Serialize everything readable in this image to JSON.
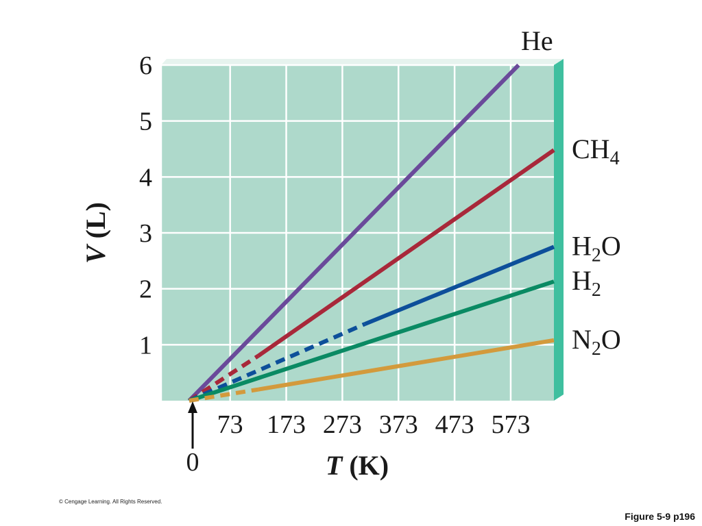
{
  "chart_data": {
    "type": "line",
    "xlabel_var": "T",
    "xlabel_unit": " (K)",
    "ylabel_var": "V",
    "ylabel_unit": " (L)",
    "x_tick_labels": [
      "73",
      "173",
      "273",
      "373",
      "473",
      "573"
    ],
    "x_tick_values": [
      73,
      173,
      273,
      373,
      473,
      573
    ],
    "x_zero_label": "0",
    "y_tick_labels": [
      "1",
      "2",
      "3",
      "4",
      "5",
      "6"
    ],
    "y_tick_values": [
      1,
      2,
      3,
      4,
      5,
      6
    ],
    "xlim": [
      -50,
      650
    ],
    "ylim": [
      0,
      6
    ],
    "grid": true,
    "series": [
      {
        "name": "He",
        "label_main": "He",
        "label_sub": "",
        "label_tail": "",
        "color": "#6a4a9a",
        "extrapolated": {
          "x": [
            0,
            0
          ],
          "y": [
            0,
            0
          ]
        },
        "measured": {
          "x": [
            0,
            587
          ],
          "y": [
            0,
            6.0
          ]
        }
      },
      {
        "name": "CH4",
        "label_main": "CH",
        "label_sub": "4",
        "label_tail": "",
        "color": "#a8283a",
        "extrapolated": {
          "x": [
            0,
            123
          ],
          "y": [
            0,
            0.8
          ]
        },
        "measured": {
          "x": [
            123,
            650
          ],
          "y": [
            0.8,
            4.48
          ]
        }
      },
      {
        "name": "H2O",
        "label_main": "H",
        "label_sub": "2",
        "label_tail": "O",
        "color": "#0d4f9a",
        "extrapolated": {
          "x": [
            0,
            313
          ],
          "y": [
            0,
            1.37
          ]
        },
        "measured": {
          "x": [
            313,
            650
          ],
          "y": [
            1.37,
            2.75
          ]
        }
      },
      {
        "name": "H2",
        "label_main": "H",
        "label_sub": "2",
        "label_tail": "",
        "color": "#0a8a63",
        "extrapolated": {
          "x": [
            0,
            0
          ],
          "y": [
            0,
            0
          ]
        },
        "measured": {
          "x": [
            0,
            650
          ],
          "y": [
            0,
            2.13
          ]
        }
      },
      {
        "name": "N2O",
        "label_main": "N",
        "label_sub": "2",
        "label_tail": "O",
        "color": "#d39a3c",
        "extrapolated": {
          "x": [
            0,
            123
          ],
          "y": [
            0,
            0.2
          ]
        },
        "measured": {
          "x": [
            123,
            650
          ],
          "y": [
            0.2,
            1.08
          ]
        }
      }
    ],
    "colors": {
      "plot_bg": "#aed9cb",
      "grid": "#ffffff",
      "side_face": "#3fbf9f"
    }
  },
  "footer": {
    "copyright": "© Cengage Learning. All Rights Reserved.",
    "caption": "Figure 5-9 p196"
  }
}
